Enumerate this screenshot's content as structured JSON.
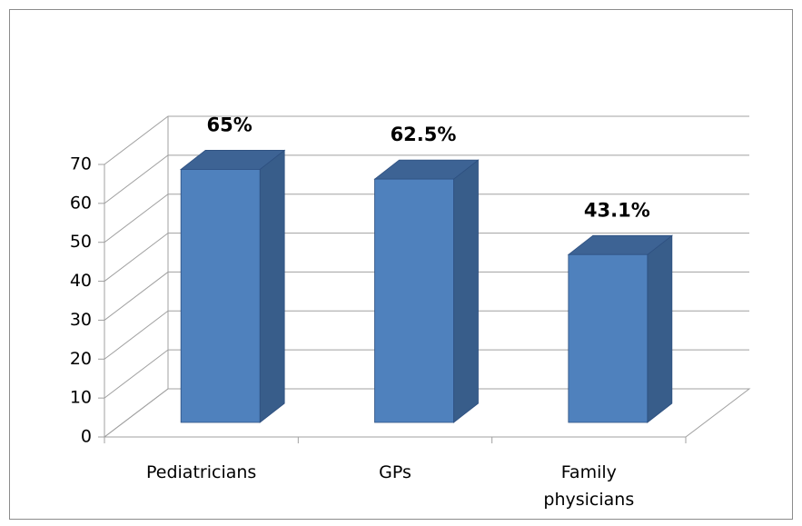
{
  "chart_data": {
    "type": "bar3d",
    "categories": [
      "Pediatricians",
      "GPs",
      "Family physicians"
    ],
    "values": [
      65,
      62.5,
      43.1
    ],
    "value_labels": [
      "65%",
      "62.5%",
      "43.1%"
    ],
    "color": "#4f81bd",
    "ylim": [
      0,
      70
    ],
    "yticks": [
      0,
      10,
      20,
      30,
      40,
      50,
      60,
      70
    ],
    "grid": true
  }
}
